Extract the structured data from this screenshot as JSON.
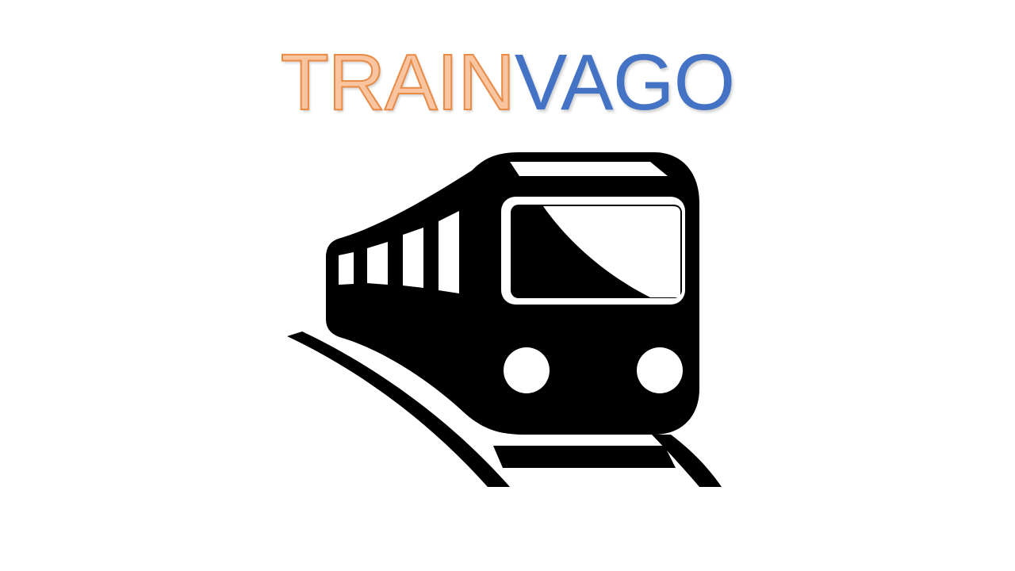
{
  "logo": {
    "part1": "TRAIN",
    "part2": "VAGO",
    "part1_color": "#f8c5a0",
    "part1_outline_color": "#e98a45",
    "part2_color": "#4472c4"
  },
  "icon": {
    "name": "train-icon",
    "color": "#000000",
    "background": "#ffffff"
  }
}
